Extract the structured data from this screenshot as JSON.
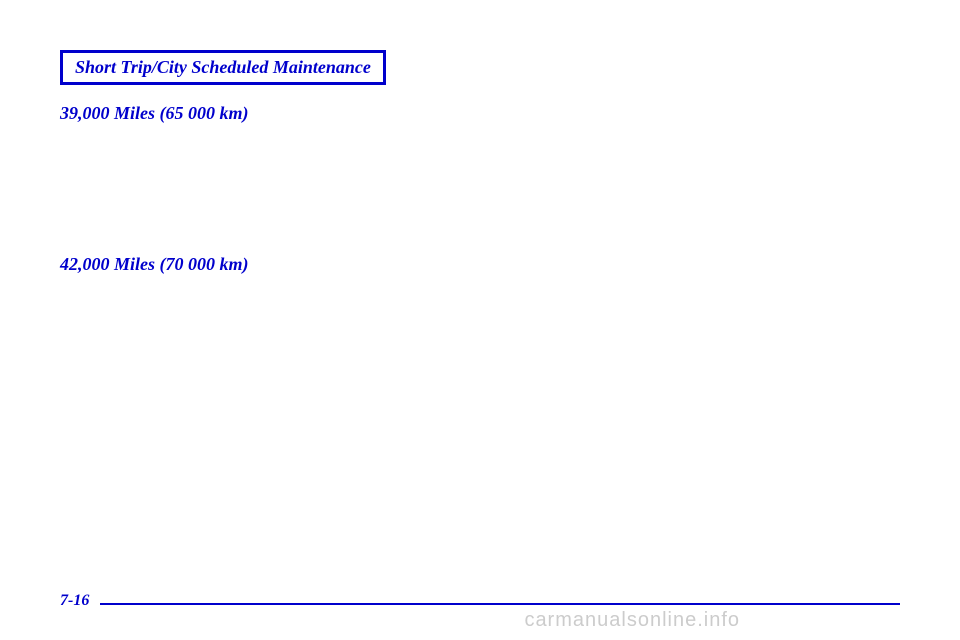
{
  "header": {
    "title": "Short Trip/City Scheduled Maintenance"
  },
  "milestones": [
    {
      "label": "39,000 Miles (65 000 km)"
    },
    {
      "label": "42,000 Miles (70 000 km)"
    }
  ],
  "pageNumber": "7-16",
  "watermark": "carmanualsonline.info",
  "colors": {
    "accent": "#0000cc",
    "background": "#ffffff",
    "watermark": "#cccccc"
  }
}
